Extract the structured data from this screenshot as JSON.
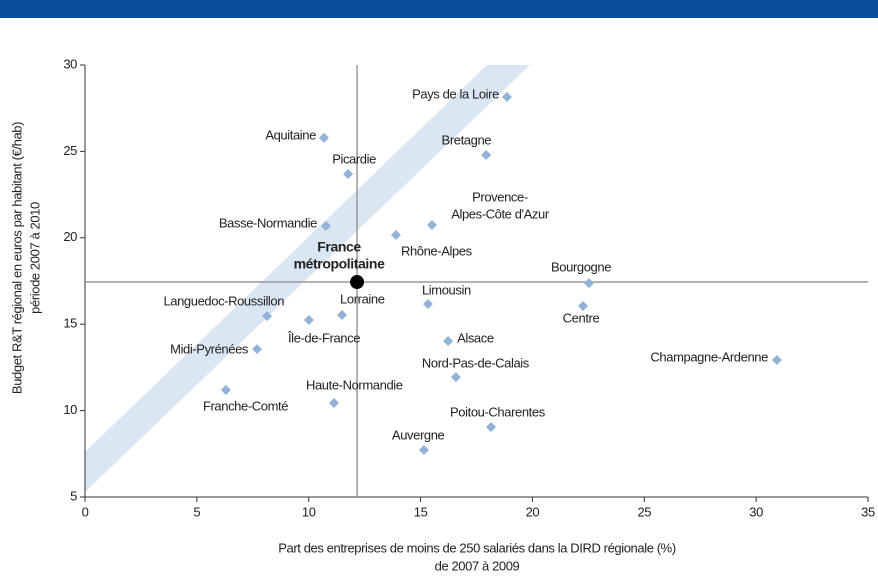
{
  "chart_data": {
    "type": "scatter",
    "x_label": [
      "Part des entreprises de moins de 250 salariés dans la DIRD régionale (%)",
      "de 2007 à 2009"
    ],
    "y_label": [
      "Budget R&T régional en euros par habitant (€/hab)",
      "période 2007 à 2010"
    ],
    "xlim": [
      0,
      35
    ],
    "xticks": [
      0,
      5,
      10,
      15,
      20,
      25,
      30,
      35
    ],
    "ylim": [
      5,
      30
    ],
    "yticks": [
      5,
      10,
      15,
      20,
      25,
      30
    ],
    "color": "#92b2d8",
    "highlight_color": "#000000",
    "points": [
      {
        "label": [
          "Pays de la Loire"
        ],
        "x": 18.86,
        "y": 28.15
      },
      {
        "label": [
          "Aquitaine"
        ],
        "x": 10.68,
        "y": 25.78
      },
      {
        "label": [
          "Bretagne"
        ],
        "x": 17.93,
        "y": 24.79
      },
      {
        "label": [
          "Picardie"
        ],
        "x": 11.76,
        "y": 23.69
      },
      {
        "label": [
          "Provence-",
          "Alpes-Côte d'Azur"
        ],
        "x": 15.51,
        "y": 20.74
      },
      {
        "label": [
          "Basse-Normandie"
        ],
        "x": 10.77,
        "y": 20.68
      },
      {
        "label": [
          "Rhône-Alpes"
        ],
        "x": 13.9,
        "y": 20.16
      },
      {
        "label": [
          "France",
          "métropolitaine"
        ],
        "x": 12.16,
        "y": 17.44,
        "highlight": true
      },
      {
        "label": [
          "Bourgogne"
        ],
        "x": 22.53,
        "y": 17.38
      },
      {
        "label": [
          "Centre"
        ],
        "x": 22.26,
        "y": 16.05
      },
      {
        "label": [
          "Limousin"
        ],
        "x": 15.33,
        "y": 16.17
      },
      {
        "label": [
          "Lorraine"
        ],
        "x": 11.49,
        "y": 15.53
      },
      {
        "label": [
          "Languedoc-Roussillon"
        ],
        "x": 8.14,
        "y": 15.47
      },
      {
        "label": [
          "Île-de-France"
        ],
        "x": 10.01,
        "y": 15.24
      },
      {
        "label": [
          "Alsace"
        ],
        "x": 16.23,
        "y": 14.03
      },
      {
        "label": [
          "Midi-Pyrénées"
        ],
        "x": 7.69,
        "y": 13.56
      },
      {
        "label": [
          "Champagne-Ardenne"
        ],
        "x": 30.93,
        "y": 12.93
      },
      {
        "label": [
          "Nord-Pas-de-Calais"
        ],
        "x": 16.58,
        "y": 11.94
      },
      {
        "label": [
          "Franche-Comté"
        ],
        "x": 6.3,
        "y": 11.19
      },
      {
        "label": [
          "Haute-Normandie"
        ],
        "x": 11.13,
        "y": 10.44
      },
      {
        "label": [
          "Poitou-Charentes"
        ],
        "x": 18.15,
        "y": 9.05
      },
      {
        "label": [
          "Auvergne"
        ],
        "x": 15.15,
        "y": 7.72
      }
    ]
  }
}
